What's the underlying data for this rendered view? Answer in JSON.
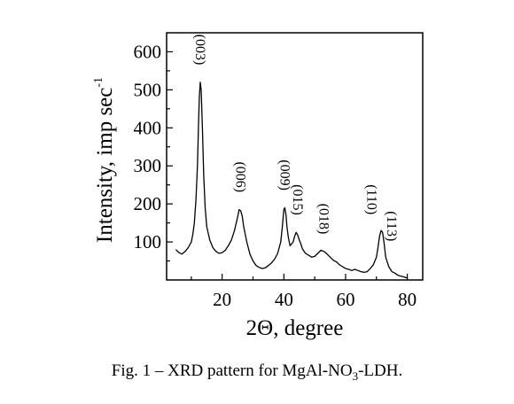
{
  "chart_data": {
    "type": "line",
    "title": "",
    "xlabel": "2Θ, degree",
    "ylabel": "Intensity, imp sec",
    "ylabel_superscript": "-1",
    "xlim": [
      2,
      85
    ],
    "ylim": [
      0,
      650
    ],
    "xticks": [
      20,
      40,
      60,
      80
    ],
    "yticks": [
      100,
      200,
      300,
      400,
      500,
      600
    ],
    "grid": false,
    "series": [
      {
        "x": [
          5,
          6,
          7,
          8,
          9,
          10,
          10.5,
          11,
          11.5,
          12,
          12.3,
          12.6,
          12.9,
          13.2,
          13.6,
          14,
          14.5,
          15,
          16,
          17,
          18,
          19,
          20,
          21,
          22,
          23,
          24,
          25,
          25.5,
          26,
          26.5,
          27,
          28,
          29,
          30,
          31,
          32,
          33,
          34,
          35,
          36,
          37,
          38,
          39,
          39.5,
          40,
          40.3,
          40.7,
          41,
          41.5,
          42,
          43,
          43.5,
          44,
          44.5,
          45,
          45.5,
          46,
          47,
          48,
          49,
          50,
          51,
          52,
          53,
          54,
          55,
          56,
          57,
          58,
          59,
          60,
          61,
          62,
          63,
          64,
          65,
          66,
          67,
          68,
          69,
          70,
          70.5,
          71,
          71.5,
          72,
          72.5,
          73,
          74,
          75,
          76,
          77,
          78,
          79,
          80
        ],
        "y": [
          80,
          72,
          68,
          75,
          85,
          100,
          120,
          150,
          210,
          300,
          400,
          480,
          520,
          500,
          400,
          280,
          190,
          140,
          105,
          85,
          75,
          70,
          72,
          78,
          90,
          105,
          130,
          165,
          185,
          182,
          168,
          140,
          100,
          68,
          50,
          38,
          33,
          30,
          32,
          38,
          45,
          55,
          70,
          100,
          140,
          185,
          190,
          170,
          140,
          110,
          90,
          100,
          115,
          125,
          118,
          105,
          95,
          82,
          70,
          65,
          60,
          62,
          70,
          78,
          75,
          68,
          60,
          52,
          48,
          40,
          35,
          30,
          28,
          25,
          28,
          25,
          22,
          20,
          22,
          30,
          40,
          60,
          85,
          115,
          130,
          125,
          95,
          60,
          35,
          22,
          18,
          12,
          10,
          8,
          5
        ]
      }
    ],
    "annotations": [
      {
        "text": "(003)",
        "x": 12.9,
        "y": 525
      },
      {
        "text": "(006)",
        "x": 26,
        "y": 190
      },
      {
        "text": "(009)",
        "x": 40.3,
        "y": 195
      },
      {
        "text": "(015)",
        "x": 44.5,
        "y": 130
      },
      {
        "text": "(018)",
        "x": 53,
        "y": 80
      },
      {
        "text": "(110)",
        "x": 68.5,
        "y": 130
      },
      {
        "text": "(113)",
        "x": 75,
        "y": 60
      }
    ]
  },
  "caption": {
    "prefix": "Fig. 1 – XRD pattern for MgAl-NO",
    "subscript": "3",
    "suffix": "-LDH."
  },
  "colors": {
    "line": "#000000",
    "axis": "#000000"
  }
}
